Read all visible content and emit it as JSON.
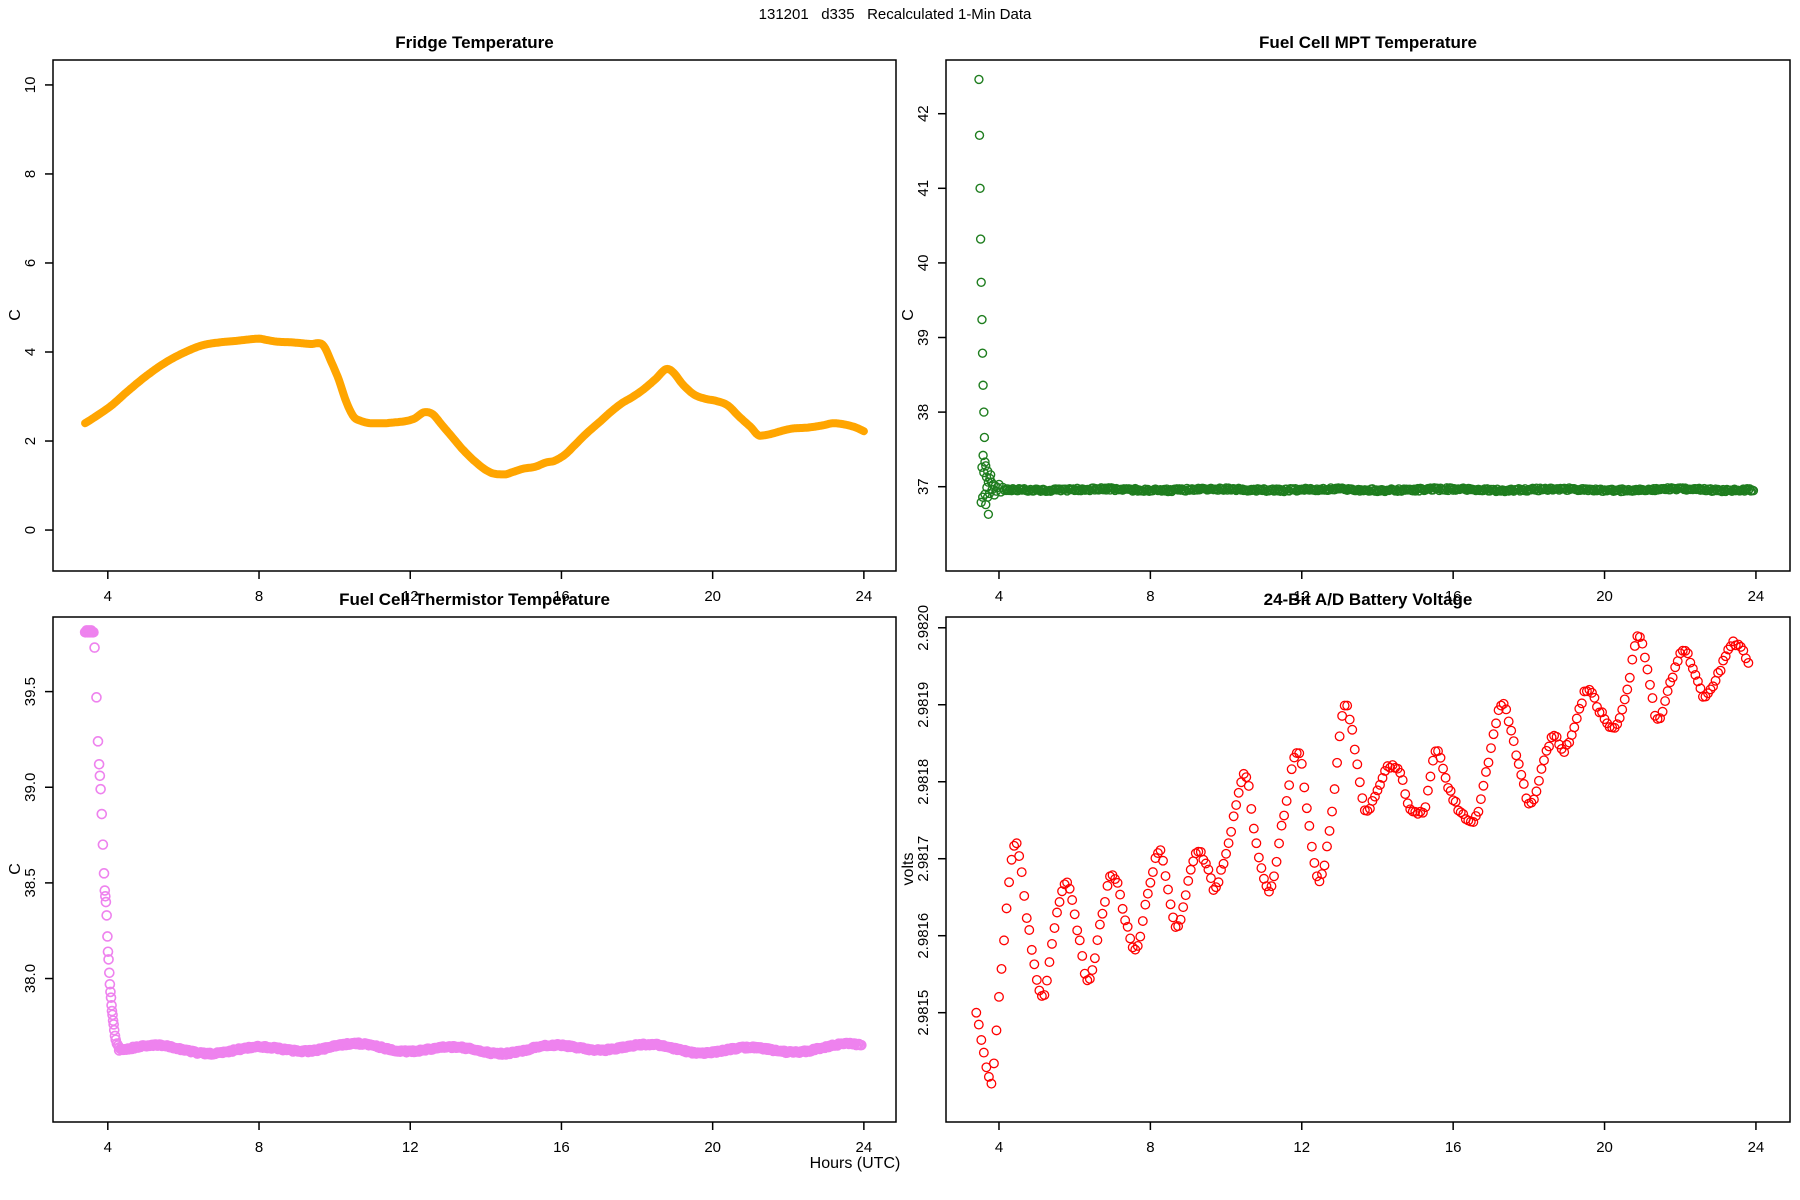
{
  "header": {
    "title": "131201   d335   Recalculated 1-Min Data"
  },
  "footer": {
    "xlabel": "Hours (UTC)"
  },
  "colors": {
    "fridge": "#FFA500",
    "mpt": "#1E7D1E",
    "thermistor": "#EE82EE",
    "battery": "#FF0000",
    "axis": "#000000"
  },
  "chart_data": [
    {
      "id": "fridge-temperature",
      "type": "line",
      "title": "Fridge Temperature",
      "ylabel": "C",
      "xlabel": "Hours (UTC)",
      "color": "#FFA500",
      "line_width": 8,
      "grid": false,
      "xlim": [
        2.55,
        24.85
      ],
      "ylim": [
        -0.92,
        10.56
      ],
      "x_ticks": [
        {
          "v": 4,
          "label": "4"
        },
        {
          "v": 8,
          "label": "8"
        },
        {
          "v": 12,
          "label": "12"
        },
        {
          "v": 16,
          "label": "16"
        },
        {
          "v": 20,
          "label": "20"
        },
        {
          "v": 24,
          "label": "24"
        }
      ],
      "y_ticks": [
        {
          "v": 0,
          "label": "0"
        },
        {
          "v": 2,
          "label": "2"
        },
        {
          "v": 4,
          "label": "4"
        },
        {
          "v": 6,
          "label": "6"
        },
        {
          "v": 8,
          "label": "8"
        },
        {
          "v": 10,
          "label": "10"
        }
      ],
      "anchors": [
        [
          3.4,
          2.4
        ],
        [
          3.55,
          2.48
        ],
        [
          3.8,
          2.62
        ],
        [
          4.1,
          2.8
        ],
        [
          4.5,
          3.1
        ],
        [
          5.0,
          3.45
        ],
        [
          5.5,
          3.75
        ],
        [
          6.0,
          3.98
        ],
        [
          6.5,
          4.15
        ],
        [
          7.0,
          4.22
        ],
        [
          7.4,
          4.25
        ],
        [
          7.7,
          4.28
        ],
        [
          8.0,
          4.3
        ],
        [
          8.2,
          4.27
        ],
        [
          8.5,
          4.23
        ],
        [
          8.8,
          4.22
        ],
        [
          9.1,
          4.2
        ],
        [
          9.4,
          4.18
        ],
        [
          9.55,
          4.2
        ],
        [
          9.7,
          4.15
        ],
        [
          9.9,
          3.8
        ],
        [
          10.1,
          3.4
        ],
        [
          10.3,
          2.9
        ],
        [
          10.5,
          2.55
        ],
        [
          10.7,
          2.45
        ],
        [
          11.0,
          2.4
        ],
        [
          11.3,
          2.4
        ],
        [
          11.6,
          2.42
        ],
        [
          11.9,
          2.45
        ],
        [
          12.1,
          2.5
        ],
        [
          12.4,
          2.65
        ],
        [
          12.6,
          2.6
        ],
        [
          12.8,
          2.4
        ],
        [
          13.1,
          2.1
        ],
        [
          13.4,
          1.8
        ],
        [
          13.7,
          1.55
        ],
        [
          14.0,
          1.35
        ],
        [
          14.2,
          1.27
        ],
        [
          14.5,
          1.25
        ],
        [
          14.7,
          1.3
        ],
        [
          15.0,
          1.38
        ],
        [
          15.3,
          1.42
        ],
        [
          15.6,
          1.52
        ],
        [
          15.8,
          1.55
        ],
        [
          16.1,
          1.7
        ],
        [
          16.4,
          1.95
        ],
        [
          16.7,
          2.2
        ],
        [
          17.0,
          2.42
        ],
        [
          17.3,
          2.65
        ],
        [
          17.6,
          2.85
        ],
        [
          17.9,
          3.0
        ],
        [
          18.2,
          3.18
        ],
        [
          18.5,
          3.4
        ],
        [
          18.8,
          3.62
        ],
        [
          18.95,
          3.55
        ],
        [
          19.2,
          3.28
        ],
        [
          19.5,
          3.05
        ],
        [
          19.8,
          2.95
        ],
        [
          20.1,
          2.9
        ],
        [
          20.4,
          2.8
        ],
        [
          20.7,
          2.55
        ],
        [
          21.0,
          2.32
        ],
        [
          21.25,
          2.12
        ],
        [
          21.5,
          2.15
        ],
        [
          21.8,
          2.22
        ],
        [
          22.1,
          2.28
        ],
        [
          22.5,
          2.3
        ],
        [
          22.9,
          2.35
        ],
        [
          23.2,
          2.4
        ],
        [
          23.5,
          2.37
        ],
        [
          23.8,
          2.3
        ],
        [
          24.0,
          2.22
        ]
      ]
    },
    {
      "id": "fuel-cell-mpt-temperature",
      "type": "scatter",
      "title": "Fuel Cell MPT Temperature",
      "ylabel": "C",
      "xlabel": "Hours (UTC)",
      "color": "#1E7D1E",
      "marker_radius": 4,
      "marker_stroke": 1.4,
      "grid": false,
      "xlim": [
        2.6,
        24.9
      ],
      "ylim": [
        35.87,
        42.72
      ],
      "x_ticks": [
        {
          "v": 4,
          "label": "4"
        },
        {
          "v": 8,
          "label": "8"
        },
        {
          "v": 12,
          "label": "12"
        },
        {
          "v": 16,
          "label": "16"
        },
        {
          "v": 20,
          "label": "20"
        },
        {
          "v": 24,
          "label": "24"
        }
      ],
      "y_ticks": [
        {
          "v": 37,
          "label": "37"
        },
        {
          "v": 38,
          "label": "38"
        },
        {
          "v": 39,
          "label": "39"
        },
        {
          "v": 40,
          "label": "40"
        },
        {
          "v": 41,
          "label": "41"
        },
        {
          "v": 42,
          "label": "42"
        }
      ],
      "points": [
        [
          3.47,
          42.46
        ],
        [
          3.485,
          41.71
        ],
        [
          3.5,
          41.0
        ],
        [
          3.515,
          40.32
        ],
        [
          3.53,
          39.74
        ],
        [
          3.55,
          39.24
        ],
        [
          3.565,
          38.79
        ],
        [
          3.58,
          38.36
        ],
        [
          3.6,
          38.0
        ],
        [
          3.615,
          37.66
        ],
        [
          3.58,
          37.42
        ],
        [
          3.63,
          37.33
        ],
        [
          3.55,
          37.26
        ],
        [
          3.6,
          37.19
        ],
        [
          3.65,
          37.28
        ],
        [
          3.67,
          37.13
        ],
        [
          3.7,
          37.21
        ],
        [
          3.72,
          37.06
        ],
        [
          3.68,
          36.99
        ],
        [
          3.63,
          36.9
        ],
        [
          3.57,
          36.86
        ],
        [
          3.53,
          36.79
        ],
        [
          3.65,
          36.76
        ],
        [
          3.7,
          36.86
        ],
        [
          3.75,
          36.91
        ],
        [
          3.72,
          36.63
        ],
        [
          3.76,
          37.11
        ],
        [
          3.78,
          37.16
        ],
        [
          3.8,
          37.06
        ],
        [
          3.82,
          36.96
        ],
        [
          3.85,
          37.03
        ],
        [
          3.88,
          36.89
        ],
        [
          3.9,
          37.01
        ],
        [
          3.93,
          36.94
        ],
        [
          3.96,
          36.99
        ],
        [
          4.0,
          37.03
        ],
        [
          4.05,
          36.93
        ],
        [
          4.1,
          36.99
        ],
        [
          4.15,
          36.95
        ],
        [
          4.2,
          36.97
        ]
      ],
      "baseline": {
        "x_start": 4.2,
        "x_end": 23.95,
        "step_minutes": 2,
        "value": 36.96,
        "waves": [
          {
            "amplitude": 0.008,
            "period": 3.0,
            "phase": 0.0
          }
        ],
        "jitter": 0.018
      }
    },
    {
      "id": "fuel-cell-thermistor-temperature",
      "type": "scatter",
      "title": "Fuel Cell Thermistor Temperature",
      "ylabel": "C",
      "xlabel": "Hours (UTC)",
      "color": "#EE82EE",
      "marker_radius": 4.5,
      "marker_stroke": 1.6,
      "grid": false,
      "xlim": [
        2.55,
        24.85
      ],
      "ylim": [
        37.25,
        39.89
      ],
      "x_ticks": [
        {
          "v": 4,
          "label": "4"
        },
        {
          "v": 8,
          "label": "8"
        },
        {
          "v": 12,
          "label": "12"
        },
        {
          "v": 16,
          "label": "16"
        },
        {
          "v": 20,
          "label": "20"
        },
        {
          "v": 24,
          "label": "24"
        }
      ],
      "y_ticks": [
        {
          "v": 38.0,
          "label": "38.0"
        },
        {
          "v": 38.5,
          "label": "38.5"
        },
        {
          "v": 39.0,
          "label": "39.0"
        },
        {
          "v": 39.5,
          "label": "39.5"
        }
      ],
      "points": [
        [
          3.4,
          39.81
        ],
        [
          3.42,
          39.81
        ],
        [
          3.44,
          39.82
        ],
        [
          3.46,
          39.81
        ],
        [
          3.48,
          39.81
        ],
        [
          3.5,
          39.82
        ],
        [
          3.52,
          39.81
        ],
        [
          3.54,
          39.81
        ],
        [
          3.56,
          39.82
        ],
        [
          3.58,
          39.81
        ],
        [
          3.6,
          39.81
        ],
        [
          3.62,
          39.81
        ],
        [
          3.65,
          39.73
        ],
        [
          3.7,
          39.47
        ],
        [
          3.74,
          39.24
        ],
        [
          3.77,
          39.12
        ],
        [
          3.79,
          39.06
        ],
        [
          3.81,
          38.99
        ],
        [
          3.84,
          38.86
        ],
        [
          3.87,
          38.7
        ],
        [
          3.9,
          38.55
        ],
        [
          3.92,
          38.46
        ],
        [
          3.935,
          38.43
        ],
        [
          3.95,
          38.4
        ],
        [
          3.97,
          38.33
        ],
        [
          3.99,
          38.22
        ],
        [
          4.005,
          38.14
        ],
        [
          4.02,
          38.1
        ],
        [
          4.04,
          38.03
        ],
        [
          4.055,
          37.97
        ],
        [
          4.07,
          37.93
        ],
        [
          4.085,
          37.9
        ],
        [
          4.1,
          37.86
        ],
        [
          4.11,
          37.83
        ],
        [
          4.125,
          37.81
        ],
        [
          4.14,
          37.78
        ],
        [
          4.155,
          37.76
        ],
        [
          4.17,
          37.73
        ],
        [
          4.19,
          37.7
        ],
        [
          4.21,
          37.68
        ],
        [
          4.24,
          37.66
        ],
        [
          4.27,
          37.65
        ],
        [
          4.3,
          37.64
        ]
      ],
      "baseline": {
        "x_start": 4.3,
        "x_end": 23.95,
        "step_minutes": 2,
        "value": 37.633,
        "waves": [
          {
            "amplitude": 0.017,
            "period": 2.6,
            "phase": 4.7
          },
          {
            "amplitude": 0.01,
            "period": 6.8,
            "phase": 2.0
          }
        ],
        "jitter": 0.005
      }
    },
    {
      "id": "battery-voltage-24bit-ad",
      "type": "scatter-interpolated",
      "title": "24-Bit A/D Battery Voltage",
      "ylabel": "volts",
      "xlabel": "Hours (UTC)",
      "color": "#FF0000",
      "marker_radius": 4.3,
      "marker_stroke": 1.3,
      "step_minutes": 4,
      "sample_jitter": 3e-06,
      "grid": false,
      "xlim": [
        2.6,
        24.9
      ],
      "ylim": [
        2.981358,
        2.982014
      ],
      "x_ticks": [
        {
          "v": 4,
          "label": "4"
        },
        {
          "v": 8,
          "label": "8"
        },
        {
          "v": 12,
          "label": "12"
        },
        {
          "v": 16,
          "label": "16"
        },
        {
          "v": 20,
          "label": "20"
        },
        {
          "v": 24,
          "label": "24"
        }
      ],
      "y_ticks": [
        {
          "v": 2.9815,
          "label": "2.9815"
        },
        {
          "v": 2.9816,
          "label": "2.9816"
        },
        {
          "v": 2.9817,
          "label": "2.9817"
        },
        {
          "v": 2.9818,
          "label": "2.9818"
        },
        {
          "v": 2.9819,
          "label": "2.9819"
        },
        {
          "v": 2.982,
          "label": "2.9820"
        }
      ],
      "anchors": [
        [
          3.4,
          2.9815
        ],
        [
          3.55,
          2.98146
        ],
        [
          3.8,
          2.98141
        ],
        [
          4.0,
          2.98152
        ],
        [
          4.45,
          2.98172
        ],
        [
          4.75,
          2.98162
        ],
        [
          5.15,
          2.98152
        ],
        [
          5.5,
          2.98162
        ],
        [
          5.77,
          2.98167
        ],
        [
          6.1,
          2.9816
        ],
        [
          6.35,
          2.98154
        ],
        [
          6.7,
          2.98162
        ],
        [
          7.0,
          2.98168
        ],
        [
          7.35,
          2.98162
        ],
        [
          7.6,
          2.98158
        ],
        [
          7.95,
          2.98166
        ],
        [
          8.25,
          2.98171
        ],
        [
          8.5,
          2.98165
        ],
        [
          8.7,
          2.98161
        ],
        [
          9.0,
          2.98167
        ],
        [
          9.25,
          2.98171
        ],
        [
          9.5,
          2.98169
        ],
        [
          9.7,
          2.98166
        ],
        [
          9.9,
          2.98169
        ],
        [
          10.1,
          2.98173
        ],
        [
          10.5,
          2.98181
        ],
        [
          10.8,
          2.98172
        ],
        [
          11.15,
          2.98166
        ],
        [
          11.5,
          2.98175
        ],
        [
          11.9,
          2.98184
        ],
        [
          12.2,
          2.98174
        ],
        [
          12.45,
          2.98167
        ],
        [
          12.8,
          2.98176
        ],
        [
          13.15,
          2.9819
        ],
        [
          13.45,
          2.98183
        ],
        [
          13.7,
          2.98176
        ],
        [
          14.0,
          2.98179
        ],
        [
          14.3,
          2.98182
        ],
        [
          14.6,
          2.98181
        ],
        [
          14.9,
          2.98176
        ],
        [
          15.2,
          2.98176
        ],
        [
          15.55,
          2.98184
        ],
        [
          15.9,
          2.98179
        ],
        [
          16.2,
          2.98176
        ],
        [
          16.55,
          2.98175
        ],
        [
          16.9,
          2.98182
        ],
        [
          17.3,
          2.9819
        ],
        [
          17.7,
          2.98183
        ],
        [
          18.05,
          2.98177
        ],
        [
          18.4,
          2.98183
        ],
        [
          18.7,
          2.98186
        ],
        [
          18.9,
          2.98184
        ],
        [
          19.2,
          2.98187
        ],
        [
          19.55,
          2.98192
        ],
        [
          19.9,
          2.98189
        ],
        [
          20.25,
          2.98187
        ],
        [
          20.6,
          2.98192
        ],
        [
          20.9,
          2.98199
        ],
        [
          21.15,
          2.98194
        ],
        [
          21.4,
          2.98188
        ],
        [
          21.75,
          2.98193
        ],
        [
          22.1,
          2.98197
        ],
        [
          22.4,
          2.98194
        ],
        [
          22.65,
          2.98191
        ],
        [
          23.0,
          2.98194
        ],
        [
          23.4,
          2.98198
        ],
        [
          23.65,
          2.98197
        ],
        [
          23.85,
          2.98195
        ]
      ]
    }
  ]
}
